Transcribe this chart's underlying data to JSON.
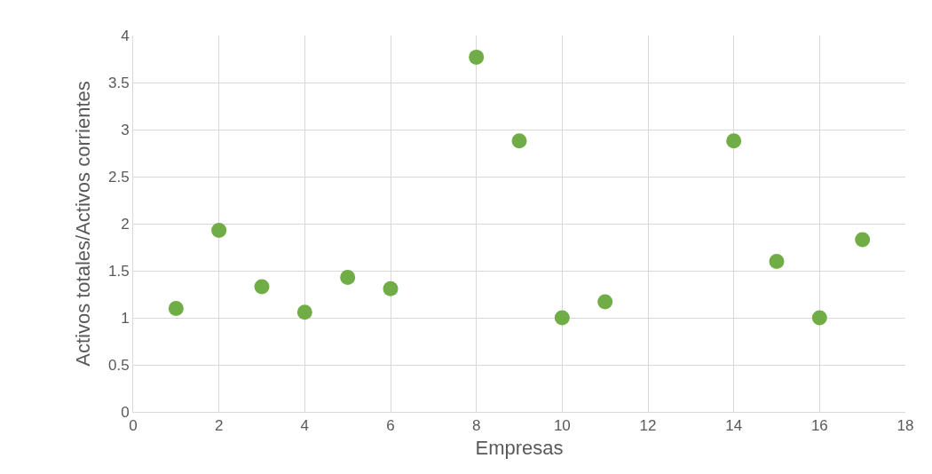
{
  "chart_data": {
    "type": "scatter",
    "xlabel": "Empresas",
    "ylabel": "Activos totales/Activos corrientes",
    "x": [
      1,
      2,
      3,
      4,
      5,
      6,
      8,
      9,
      10,
      11,
      14,
      15,
      16,
      17
    ],
    "values": [
      1.1,
      1.93,
      1.33,
      1.06,
      1.43,
      1.31,
      3.77,
      2.88,
      1.0,
      1.17,
      2.88,
      1.6,
      1.0,
      1.83
    ],
    "color": "#70ad47",
    "marker": "circle",
    "xlim": [
      0,
      18
    ],
    "xticks": [
      0,
      2,
      4,
      6,
      8,
      10,
      12,
      14,
      16,
      18
    ],
    "ylim": [
      0,
      4
    ],
    "yticks": [
      0,
      0.5,
      1,
      1.5,
      2,
      2.5,
      3,
      3.5,
      4
    ],
    "grid": true
  }
}
